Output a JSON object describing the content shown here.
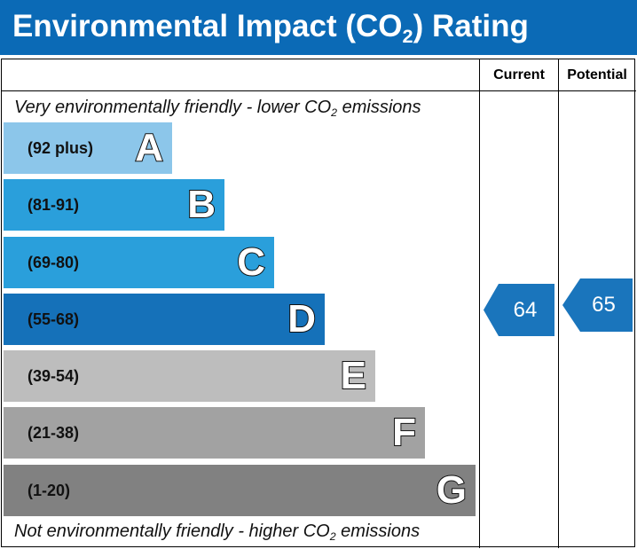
{
  "header": {
    "title_before": "Environmental Impact (CO",
    "title_sub": "2",
    "title_after": ") Rating",
    "background": "#0b6ab6"
  },
  "columns": {
    "current_label": "Current",
    "potential_label": "Potential"
  },
  "notes": {
    "top_before": "Very environmentally friendly - lower CO",
    "top_sub": "2",
    "top_after": " emissions",
    "bottom_before": "Not environmentally friendly - higher CO",
    "bottom_sub": "2",
    "bottom_after": " emissions"
  },
  "chart_data": {
    "type": "bar",
    "categories": [
      "A",
      "B",
      "C",
      "D",
      "E",
      "F",
      "G"
    ],
    "bands": [
      {
        "letter": "A",
        "range": "(92 plus)",
        "color": "#8cc6ea"
      },
      {
        "letter": "B",
        "range": "(81-91)",
        "color": "#2a9fdb"
      },
      {
        "letter": "C",
        "range": "(69-80)",
        "color": "#2a9fdb"
      },
      {
        "letter": "D",
        "range": "(55-68)",
        "color": "#1571b9"
      },
      {
        "letter": "E",
        "range": "(39-54)",
        "color": "#bdbdbd"
      },
      {
        "letter": "F",
        "range": "(21-38)",
        "color": "#a2a2a2"
      },
      {
        "letter": "G",
        "range": "(1-20)",
        "color": "#818181"
      }
    ],
    "current": {
      "label": "Current",
      "value": "64",
      "band": "D",
      "color": "#1a75bc"
    },
    "potential": {
      "label": "Potential",
      "value": "65",
      "band": "D",
      "color": "#1a75bc"
    }
  }
}
